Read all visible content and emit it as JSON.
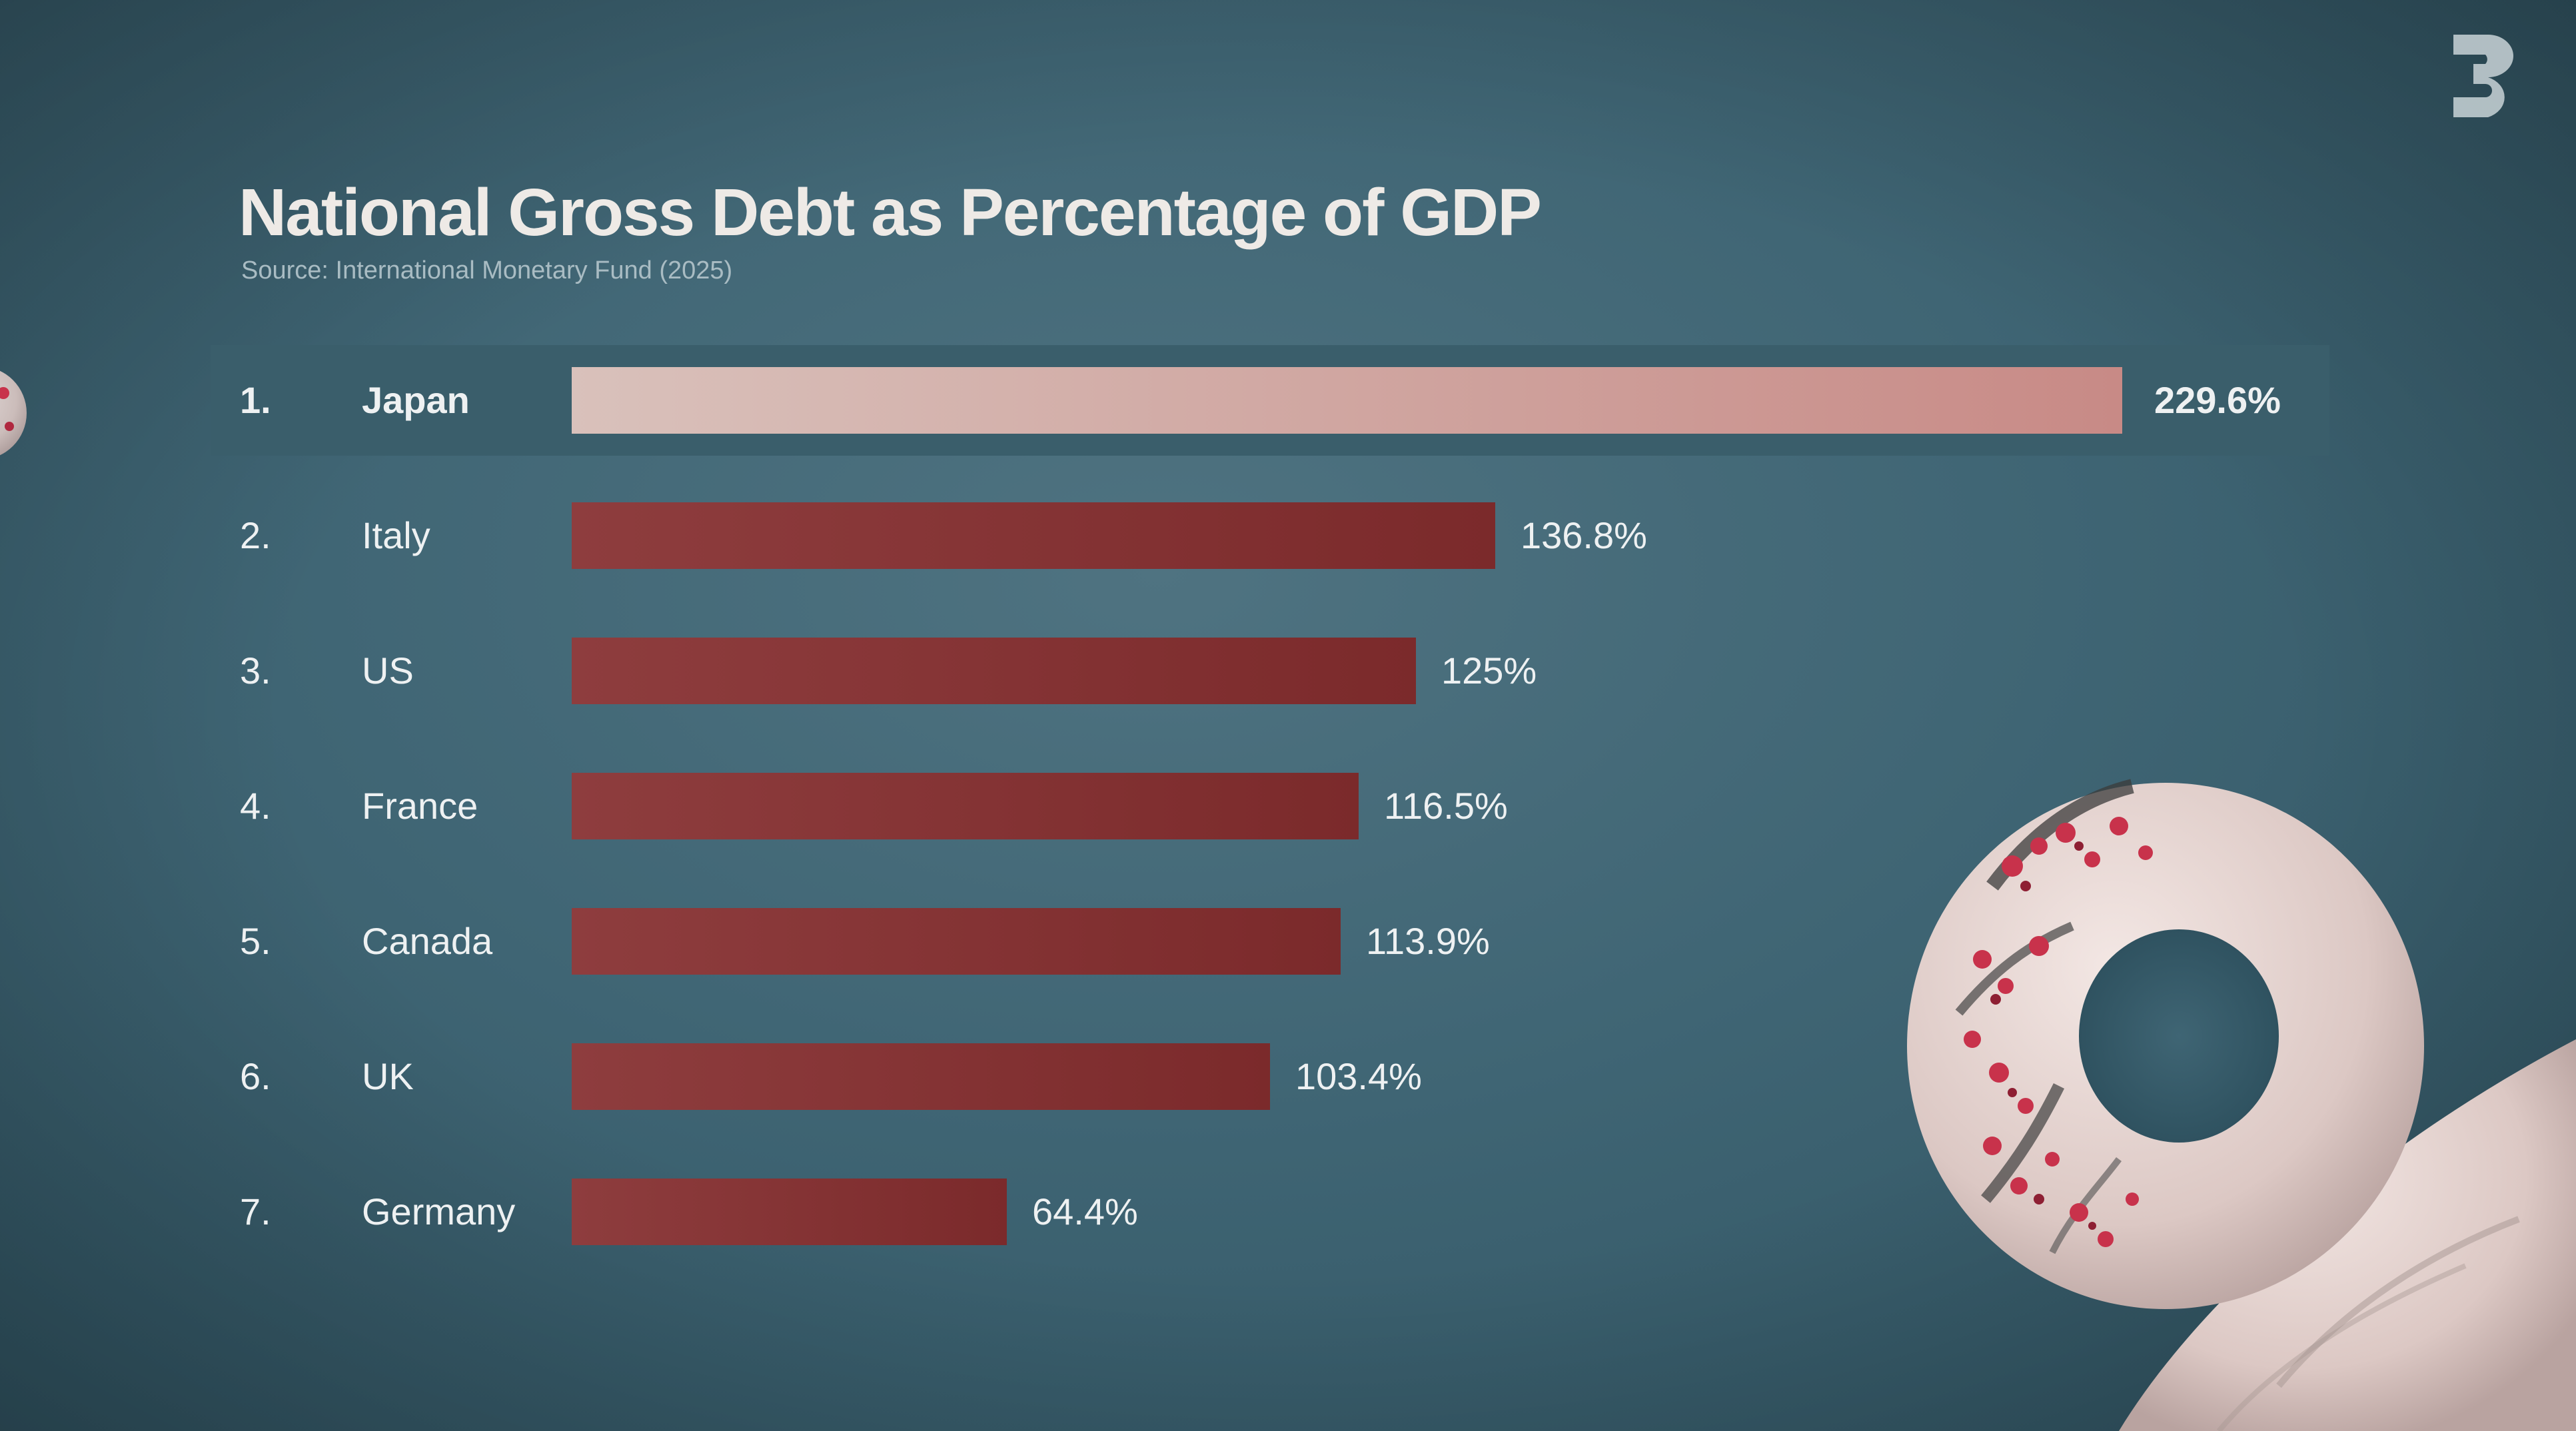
{
  "chart_data": {
    "type": "bar",
    "orientation": "horizontal",
    "title": "National Gross Debt as Percentage of GDP",
    "subtitle": "Source: International Monetary Fund (2025)",
    "categories": [
      "Japan",
      "Italy",
      "US",
      "France",
      "Canada",
      "UK",
      "Germany"
    ],
    "ranks": [
      "1.",
      "2.",
      "3.",
      "4.",
      "5.",
      "6.",
      "7."
    ],
    "values": [
      229.6,
      136.8,
      125,
      116.5,
      113.9,
      103.4,
      64.4
    ],
    "value_labels": [
      "229.6%",
      "136.8%",
      "125%",
      "116.5%",
      "113.9%",
      "103.4%",
      "64.4%"
    ],
    "xlim": [
      0,
      229.6
    ],
    "highlighted": "Japan",
    "grid": false,
    "legend": "none"
  },
  "colors": {
    "background": "#3f6574",
    "bar": "#84302f",
    "highlight_bar": "#d9bdb6",
    "highlight_row": "#3a5e6b",
    "text": "#eef1f2"
  },
  "logo": {
    "icon": "channel-logo-icon"
  }
}
